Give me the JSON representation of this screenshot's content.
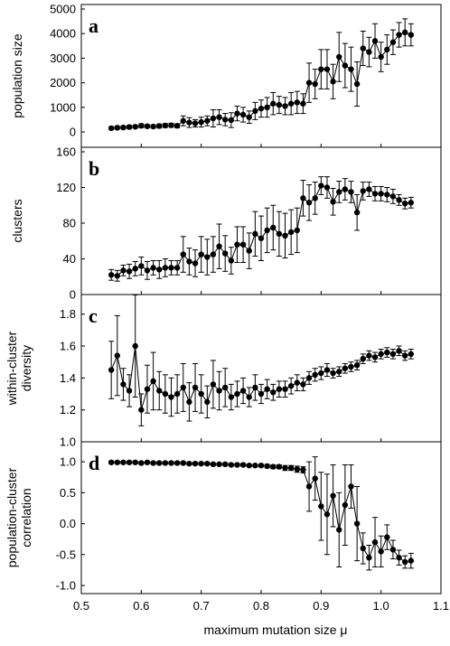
{
  "figure": {
    "xlabel": "maximum mutation size μ"
  },
  "chart_data": [
    {
      "type": "line",
      "panel_label": "a",
      "ylabel": [
        "population size"
      ],
      "xlim": [
        0.5,
        1.1
      ],
      "ylim": [
        0,
        5000
      ],
      "xticks": [
        0.5,
        0.6,
        0.7,
        0.8,
        0.9,
        1.0,
        1.1
      ],
      "yticks": [
        0,
        1000,
        2000,
        3000,
        4000,
        5000
      ],
      "ytick_labels": [
        "0",
        "1000",
        "2000",
        "3000",
        "4000",
        "5000"
      ],
      "x": [
        0.55,
        0.56,
        0.57,
        0.58,
        0.59,
        0.6,
        0.61,
        0.62,
        0.63,
        0.64,
        0.65,
        0.66,
        0.67,
        0.68,
        0.69,
        0.7,
        0.71,
        0.72,
        0.73,
        0.74,
        0.75,
        0.76,
        0.77,
        0.78,
        0.79,
        0.8,
        0.81,
        0.82,
        0.83,
        0.84,
        0.85,
        0.86,
        0.87,
        0.88,
        0.89,
        0.9,
        0.91,
        0.92,
        0.93,
        0.94,
        0.95,
        0.96,
        0.97,
        0.98,
        0.99,
        1.0,
        1.01,
        1.02,
        1.03,
        1.04,
        1.05
      ],
      "y": [
        150,
        170,
        180,
        200,
        210,
        250,
        230,
        220,
        240,
        260,
        270,
        250,
        450,
        380,
        350,
        400,
        450,
        550,
        600,
        500,
        480,
        750,
        700,
        600,
        850,
        950,
        1000,
        1150,
        1100,
        1050,
        1150,
        1200,
        1150,
        2000,
        1950,
        2550,
        2550,
        2050,
        3050,
        2700,
        2550,
        1950,
        3400,
        3250,
        3700,
        3050,
        3350,
        3650,
        3950,
        4050,
        3950
      ],
      "err": [
        50,
        60,
        60,
        60,
        60,
        80,
        60,
        60,
        80,
        80,
        80,
        80,
        200,
        200,
        150,
        200,
        200,
        350,
        300,
        250,
        300,
        300,
        300,
        250,
        350,
        350,
        400,
        450,
        350,
        350,
        450,
        450,
        400,
        800,
        600,
        800,
        800,
        700,
        1000,
        900,
        900,
        900,
        700,
        600,
        700,
        600,
        600,
        500,
        500,
        550,
        450
      ]
    },
    {
      "type": "line",
      "panel_label": "b",
      "ylabel": [
        "clusters"
      ],
      "xlim": [
        0.5,
        1.1
      ],
      "ylim": [
        0,
        160
      ],
      "xticks": [
        0.5,
        0.6,
        0.7,
        0.8,
        0.9,
        1.0,
        1.1
      ],
      "yticks": [
        0,
        40,
        80,
        120,
        160
      ],
      "ytick_labels": [
        "0",
        "40",
        "80",
        "120",
        "160"
      ],
      "x": [
        0.55,
        0.56,
        0.57,
        0.58,
        0.59,
        0.6,
        0.61,
        0.62,
        0.63,
        0.64,
        0.65,
        0.66,
        0.67,
        0.68,
        0.69,
        0.7,
        0.71,
        0.72,
        0.73,
        0.74,
        0.75,
        0.76,
        0.77,
        0.78,
        0.79,
        0.8,
        0.81,
        0.82,
        0.83,
        0.84,
        0.85,
        0.86,
        0.87,
        0.88,
        0.89,
        0.9,
        0.91,
        0.92,
        0.93,
        0.94,
        0.95,
        0.96,
        0.97,
        0.98,
        0.99,
        1.0,
        1.01,
        1.02,
        1.03,
        1.04,
        1.05
      ],
      "y": [
        22,
        21,
        27,
        26,
        29,
        32,
        27,
        30,
        28,
        30,
        30,
        30,
        45,
        37,
        35,
        45,
        42,
        45,
        54,
        46,
        38,
        56,
        56,
        49,
        68,
        63,
        72,
        75,
        68,
        66,
        70,
        72,
        108,
        103,
        108,
        122,
        120,
        104,
        115,
        118,
        115,
        92,
        116,
        118,
        113,
        113,
        112,
        110,
        106,
        102,
        103
      ],
      "err": [
        6,
        6,
        6,
        8,
        8,
        10,
        10,
        8,
        10,
        10,
        8,
        8,
        20,
        15,
        15,
        20,
        20,
        20,
        25,
        20,
        15,
        20,
        20,
        20,
        25,
        25,
        25,
        25,
        25,
        25,
        25,
        25,
        20,
        20,
        18,
        10,
        12,
        15,
        12,
        12,
        12,
        20,
        10,
        8,
        8,
        8,
        8,
        8,
        6,
        6,
        6
      ]
    },
    {
      "type": "line",
      "panel_label": "c",
      "ylabel": [
        "within-cluster",
        "diversity"
      ],
      "xlim": [
        0.5,
        1.1
      ],
      "ylim": [
        1.0,
        1.9
      ],
      "xticks": [
        0.5,
        0.6,
        0.7,
        0.8,
        0.9,
        1.0,
        1.1
      ],
      "yticks": [
        1.0,
        1.2,
        1.4,
        1.6,
        1.8
      ],
      "ytick_labels": [
        "1.0",
        "1.2",
        "1.4",
        "1.6",
        "1.8"
      ],
      "x": [
        0.55,
        0.56,
        0.57,
        0.58,
        0.59,
        0.6,
        0.61,
        0.62,
        0.63,
        0.64,
        0.65,
        0.66,
        0.67,
        0.68,
        0.69,
        0.7,
        0.71,
        0.72,
        0.73,
        0.74,
        0.75,
        0.76,
        0.77,
        0.78,
        0.79,
        0.8,
        0.81,
        0.82,
        0.83,
        0.84,
        0.85,
        0.86,
        0.87,
        0.88,
        0.89,
        0.9,
        0.91,
        0.92,
        0.93,
        0.94,
        0.95,
        0.96,
        0.97,
        0.98,
        0.99,
        1.0,
        1.01,
        1.02,
        1.03,
        1.04,
        1.05
      ],
      "y": [
        1.45,
        1.54,
        1.36,
        1.32,
        1.6,
        1.2,
        1.33,
        1.38,
        1.32,
        1.3,
        1.28,
        1.3,
        1.34,
        1.25,
        1.34,
        1.3,
        1.25,
        1.36,
        1.32,
        1.34,
        1.28,
        1.3,
        1.32,
        1.28,
        1.34,
        1.3,
        1.33,
        1.31,
        1.33,
        1.33,
        1.35,
        1.37,
        1.36,
        1.4,
        1.42,
        1.43,
        1.45,
        1.43,
        1.44,
        1.46,
        1.47,
        1.48,
        1.52,
        1.54,
        1.53,
        1.55,
        1.56,
        1.55,
        1.57,
        1.54,
        1.55
      ],
      "err": [
        0.18,
        0.25,
        0.1,
        0.1,
        0.32,
        0.1,
        0.15,
        0.18,
        0.12,
        0.12,
        0.12,
        0.12,
        0.15,
        0.12,
        0.15,
        0.12,
        0.1,
        0.15,
        0.12,
        0.12,
        0.08,
        0.08,
        0.08,
        0.06,
        0.08,
        0.06,
        0.06,
        0.05,
        0.05,
        0.05,
        0.05,
        0.05,
        0.04,
        0.04,
        0.04,
        0.04,
        0.04,
        0.03,
        0.03,
        0.03,
        0.03,
        0.03,
        0.03,
        0.03,
        0.03,
        0.03,
        0.03,
        0.03,
        0.03,
        0.03,
        0.03
      ]
    },
    {
      "type": "line",
      "panel_label": "d",
      "ylabel": [
        "population-cluster",
        "correlation"
      ],
      "xlim": [
        0.5,
        1.1
      ],
      "ylim": [
        -1.0,
        1.25
      ],
      "xticks": [
        0.5,
        0.6,
        0.7,
        0.8,
        0.9,
        1.0,
        1.1
      ],
      "xtick_labels": [
        "0.5",
        "0.6",
        "0.7",
        "0.8",
        "0.9",
        "1.0",
        "1.1"
      ],
      "yticks": [
        -1.0,
        -0.5,
        0.0,
        0.5,
        1.0
      ],
      "ytick_labels": [
        "-1.0",
        "-0.5",
        "0.0",
        "0.5",
        "1.0"
      ],
      "x": [
        0.55,
        0.56,
        0.57,
        0.58,
        0.59,
        0.6,
        0.61,
        0.62,
        0.63,
        0.64,
        0.65,
        0.66,
        0.67,
        0.68,
        0.69,
        0.7,
        0.71,
        0.72,
        0.73,
        0.74,
        0.75,
        0.76,
        0.77,
        0.78,
        0.79,
        0.8,
        0.81,
        0.82,
        0.83,
        0.84,
        0.85,
        0.86,
        0.87,
        0.88,
        0.89,
        0.9,
        0.91,
        0.92,
        0.93,
        0.94,
        0.95,
        0.96,
        0.97,
        0.98,
        0.99,
        1.0,
        1.01,
        1.02,
        1.03,
        1.04,
        1.05
      ],
      "y": [
        0.99,
        0.99,
        0.99,
        0.99,
        0.99,
        0.98,
        0.99,
        0.98,
        0.98,
        0.98,
        0.98,
        0.98,
        0.98,
        0.97,
        0.97,
        0.97,
        0.97,
        0.96,
        0.96,
        0.96,
        0.95,
        0.95,
        0.95,
        0.94,
        0.94,
        0.94,
        0.93,
        0.92,
        0.92,
        0.9,
        0.9,
        0.88,
        0.87,
        0.6,
        0.73,
        0.28,
        0.15,
        0.45,
        -0.1,
        0.3,
        0.6,
        0.0,
        -0.4,
        -0.55,
        -0.3,
        -0.45,
        -0.22,
        -0.42,
        -0.55,
        -0.62,
        -0.6
      ],
      "err": [
        0.02,
        0.02,
        0.02,
        0.02,
        0.02,
        0.02,
        0.02,
        0.02,
        0.02,
        0.02,
        0.02,
        0.02,
        0.02,
        0.02,
        0.02,
        0.02,
        0.02,
        0.02,
        0.02,
        0.02,
        0.02,
        0.02,
        0.02,
        0.02,
        0.02,
        0.02,
        0.03,
        0.03,
        0.03,
        0.04,
        0.04,
        0.05,
        0.05,
        0.4,
        0.35,
        0.55,
        0.65,
        0.5,
        0.6,
        0.65,
        0.35,
        0.6,
        0.25,
        0.2,
        0.4,
        0.25,
        0.2,
        0.15,
        0.12,
        0.1,
        0.12
      ]
    }
  ]
}
